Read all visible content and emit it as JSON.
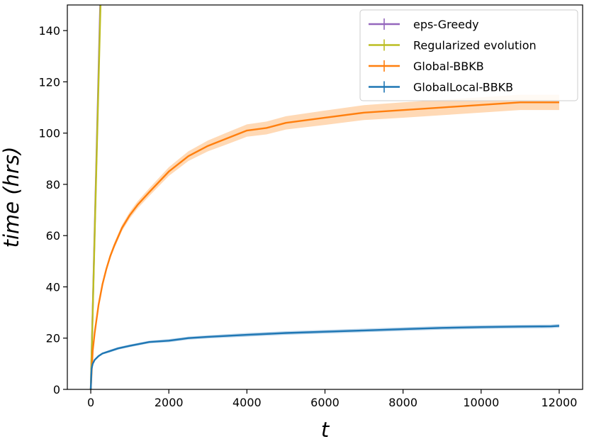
{
  "chart_data": {
    "type": "line",
    "title": "",
    "xlabel": "t",
    "ylabel": "time (hrs)",
    "xlim": [
      -600,
      12600
    ],
    "ylim": [
      0,
      150
    ],
    "xticks": [
      0,
      2000,
      4000,
      6000,
      8000,
      10000,
      12000
    ],
    "yticks": [
      0,
      20,
      40,
      60,
      80,
      100,
      120,
      140
    ],
    "xtick_labels": [
      "0",
      "2000",
      "4000",
      "6000",
      "8000",
      "10000",
      "12000"
    ],
    "ytick_labels": [
      "0",
      "20",
      "40",
      "60",
      "80",
      "100",
      "120",
      "140"
    ],
    "grid": false,
    "legend_position": "top-right",
    "series": [
      {
        "name": "eps-Greedy",
        "color": "#9467bd",
        "x": [
          0,
          100,
          200,
          250
        ],
        "y": [
          0,
          62,
          124,
          155
        ]
      },
      {
        "name": "Regularized evolution",
        "color": "#bcbd22",
        "x": [
          0,
          100,
          200,
          260
        ],
        "y": [
          0,
          60,
          120,
          156
        ]
      },
      {
        "name": "Global-BBKB",
        "color": "#ff7f0e",
        "band_color": "#ffcfa3",
        "x": [
          0,
          50,
          100,
          200,
          300,
          400,
          500,
          600,
          800,
          1000,
          1200,
          1500,
          2000,
          2500,
          3000,
          3500,
          4000,
          4500,
          5000,
          6000,
          7000,
          8000,
          9000,
          10000,
          11000,
          12000
        ],
        "y": [
          0,
          15,
          22,
          33,
          41,
          47,
          52,
          56,
          63,
          68,
          72,
          77,
          85,
          91,
          95,
          98,
          101,
          102,
          104,
          106,
          108,
          109,
          110,
          111,
          112,
          112
        ],
        "band": [
          0,
          0.3,
          0.4,
          0.6,
          0.8,
          0.9,
          1.0,
          1.1,
          1.2,
          1.3,
          1.4,
          1.5,
          1.7,
          1.9,
          2.1,
          2.3,
          2.4,
          2.5,
          2.6,
          2.8,
          2.9,
          3.0,
          3.0,
          3.0,
          3.0,
          3.0
        ]
      },
      {
        "name": "GlobalLocal-BBKB",
        "color": "#1f77b4",
        "band_color": "#a9cbe6",
        "x": [
          0,
          20,
          50,
          100,
          200,
          300,
          500,
          700,
          1000,
          1500,
          2000,
          2500,
          3000,
          4000,
          5000,
          6000,
          7000,
          8000,
          9000,
          10000,
          11000,
          11800,
          12000
        ],
        "y": [
          0,
          8,
          10,
          11.5,
          13,
          14,
          15,
          16,
          17,
          18.5,
          19,
          20,
          20.5,
          21.3,
          22,
          22.5,
          23,
          23.5,
          24,
          24.3,
          24.5,
          24.6,
          24.8
        ],
        "band": [
          0,
          0.3,
          0.3,
          0.4,
          0.4,
          0.4,
          0.5,
          0.5,
          0.5,
          0.5,
          0.6,
          0.6,
          0.6,
          0.7,
          0.7,
          0.7,
          0.7,
          0.7,
          0.7,
          0.7,
          0.7,
          0.7,
          0.7
        ]
      }
    ]
  }
}
